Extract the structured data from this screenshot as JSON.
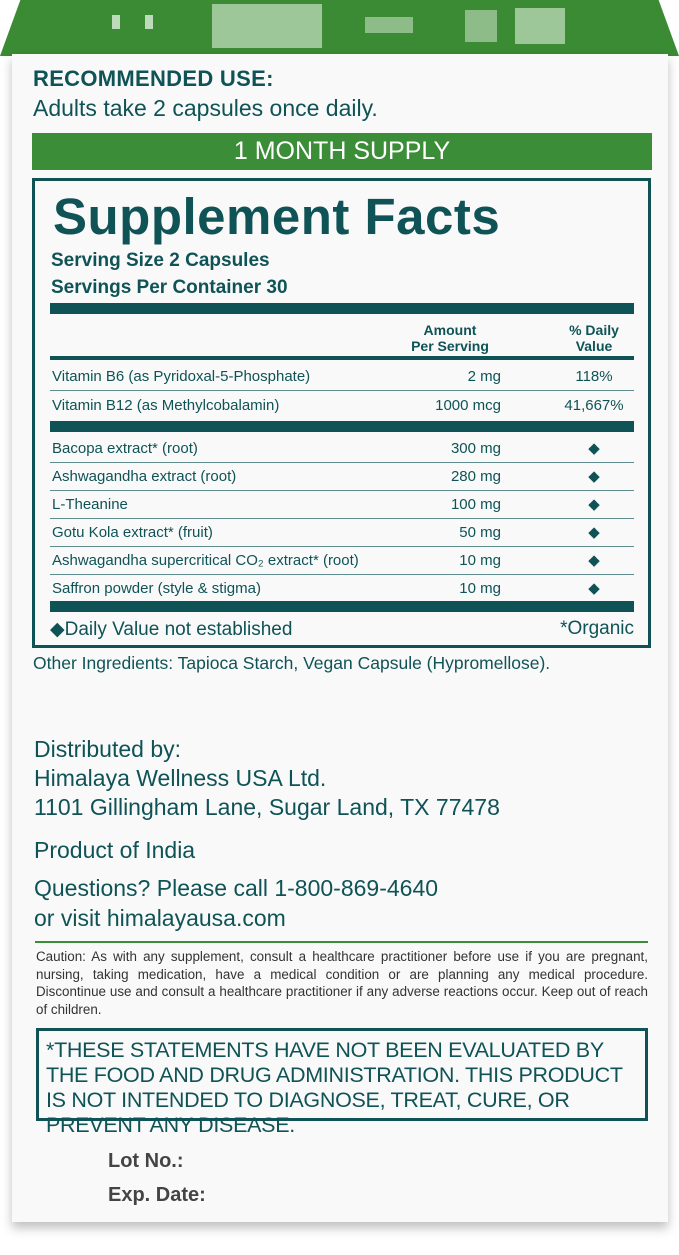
{
  "colors": {
    "green": "#3b8d37",
    "teal": "#0f5356"
  },
  "recommended_use": {
    "heading": "RECOMMENDED USE:",
    "text": "Adults take 2 capsules once daily."
  },
  "supply_banner": "1 MONTH SUPPLY",
  "supplement_facts": {
    "title": "Supplement Facts",
    "serving_size": "Serving Size 2 Capsules",
    "servings_per_container": "Servings Per Container 30",
    "col_amount": [
      "Amount",
      "Per Serving"
    ],
    "col_dv": [
      "% Daily",
      "Value"
    ],
    "vitamins": [
      {
        "name": "Vitamin B6 (as Pyridoxal-5-Phosphate)",
        "amount": "2 mg",
        "dv": "118%"
      },
      {
        "name": "Vitamin B12 (as Methylcobalamin)",
        "amount": "1000 mcg",
        "dv": "41,667%"
      }
    ],
    "ingredients": [
      {
        "name": "Bacopa extract* (root)",
        "amount": "300 mg",
        "dv": "◆"
      },
      {
        "name": "Ashwagandha extract (root)",
        "amount": "280 mg",
        "dv": "◆"
      },
      {
        "name": "L-Theanine",
        "amount": "100 mg",
        "dv": "◆"
      },
      {
        "name": "Gotu Kola extract* (fruit)",
        "amount": "50 mg",
        "dv": "◆"
      },
      {
        "name": "Ashwagandha supercritical CO₂ extract* (root)",
        "amount": "10 mg",
        "dv": "◆"
      },
      {
        "name": "Saffron powder (style & stigma)",
        "amount": "10 mg",
        "dv": "◆"
      }
    ],
    "footnote_dv": "◆Daily Value not established",
    "footnote_organic": "*Organic"
  },
  "other_ingredients": "Other Ingredients: Tapioca Starch, Vegan Capsule (Hypromellose).",
  "distributor": {
    "label": "Distributed by:",
    "name": "Himalaya Wellness USA Ltd.",
    "address": "1101 Gillingham Lane, Sugar Land, TX 77478"
  },
  "origin": "Product of India",
  "contact": {
    "line1": "Questions? Please call 1-800-869-4640",
    "line2": "or visit himalayausa.com"
  },
  "caution": "Caution: As with any supplement, consult a healthcare practitioner before use if you are pregnant, nursing, taking medication, have a medical condition or are planning any medical procedure. Discontinue use and consult a healthcare practitioner if any adverse reactions occur. Keep out of reach of children.",
  "fda_disclaimer": "*THESE STATEMENTS HAVE NOT BEEN EVALUATED BY THE FOOD AND DRUG ADMINISTRATION. THIS PRODUCT IS NOT INTENDED TO DIAGNOSE, TREAT, CURE, OR PREVENT ANY DISEASE.",
  "lot_label": "Lot No.:",
  "exp_label": "Exp. Date:"
}
